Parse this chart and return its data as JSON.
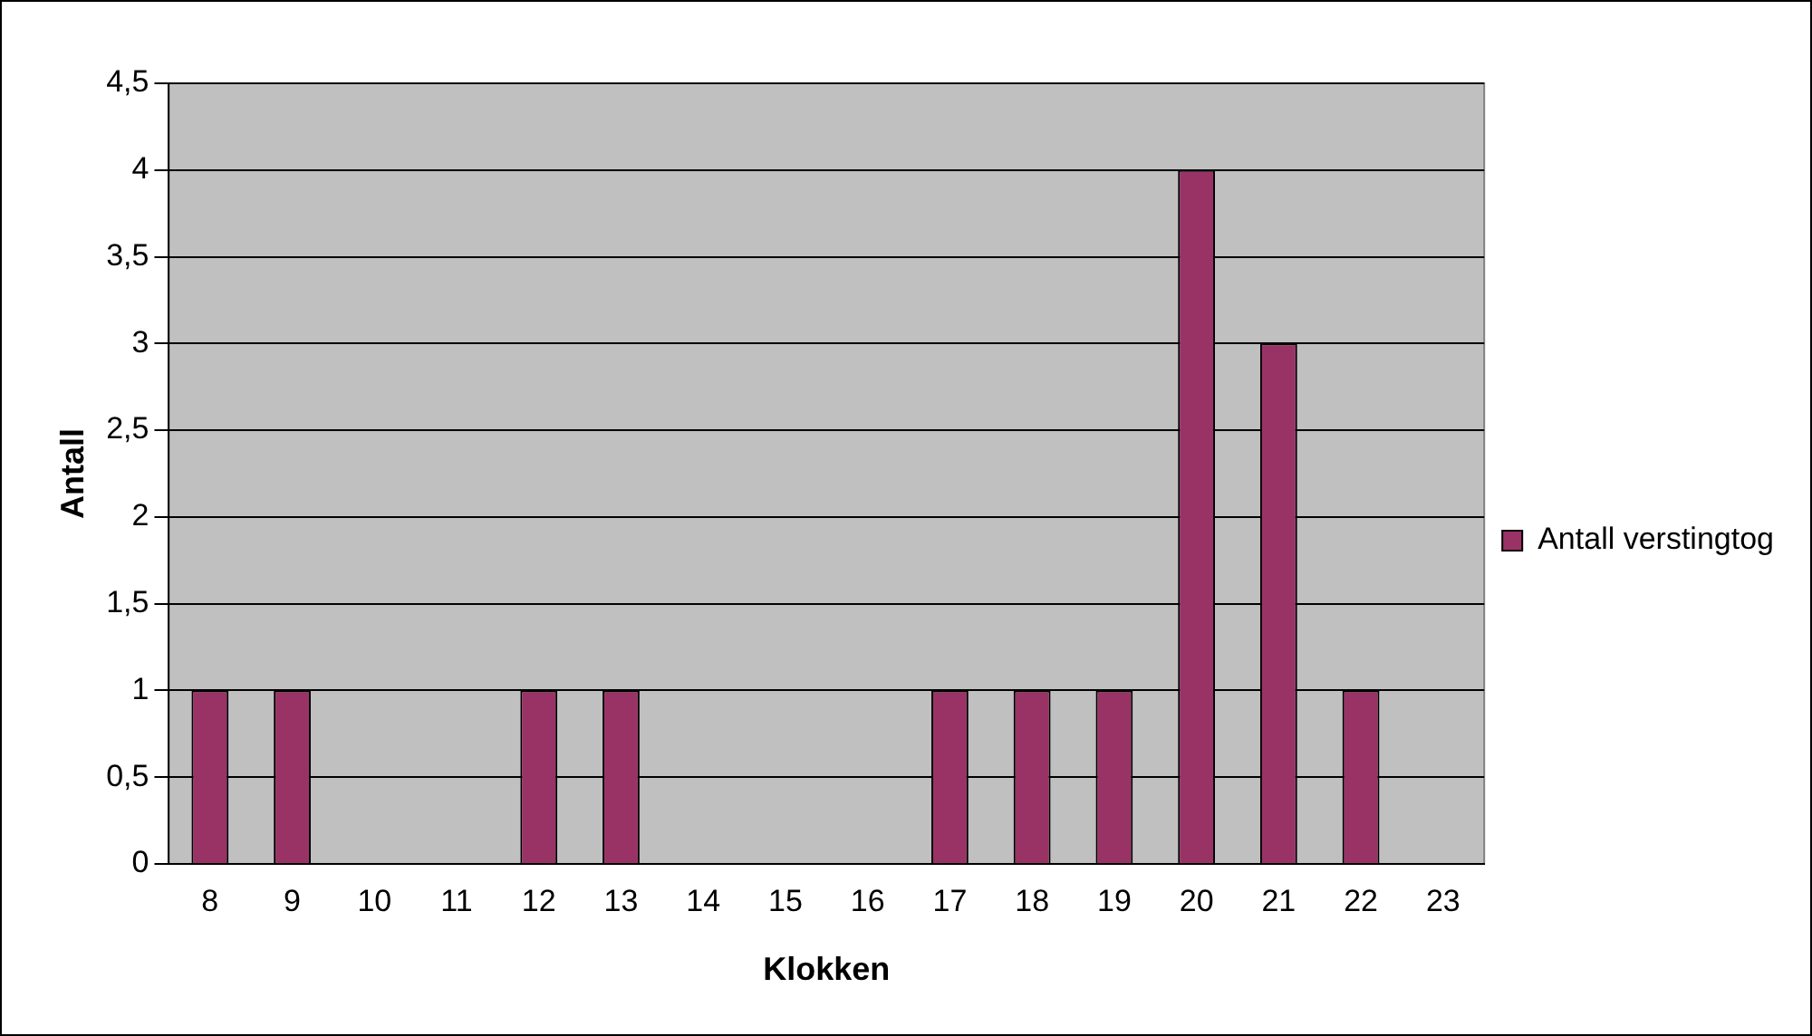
{
  "chart_data": {
    "type": "bar",
    "xlabel": "Klokken",
    "ylabel": "Antall",
    "categories": [
      "8",
      "9",
      "10",
      "11",
      "12",
      "13",
      "14",
      "15",
      "16",
      "17",
      "18",
      "19",
      "20",
      "21",
      "22",
      "23"
    ],
    "series": [
      {
        "name": "Antall verstingtog",
        "color": "#993366",
        "values": [
          1,
          1,
          0,
          0,
          1,
          1,
          0,
          0,
          0,
          1,
          1,
          1,
          4,
          3,
          1,
          0
        ]
      }
    ],
    "ylim": [
      0,
      4.5
    ],
    "yticks": [
      0,
      {
        "value": 0.5,
        "label": "0,5"
      },
      1,
      {
        "value": 1.5,
        "label": "1,5"
      },
      2,
      {
        "value": 2.5,
        "label": "2,5"
      },
      3,
      {
        "value": 3.5,
        "label": "3,5"
      },
      4,
      {
        "value": 4.5,
        "label": "4,5"
      }
    ],
    "grid": "y",
    "legend": "right"
  }
}
